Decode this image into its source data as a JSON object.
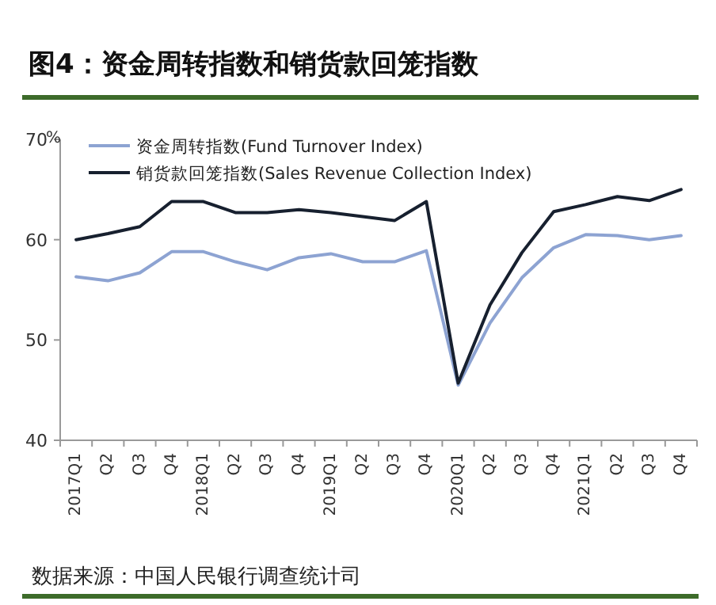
{
  "chart_data": {
    "type": "line",
    "title": "图4：资金周转指数和销货款回笼指数",
    "ylabel": "%",
    "categories": [
      "2017Q1",
      "Q2",
      "Q3",
      "Q4",
      "2018Q1",
      "Q2",
      "Q3",
      "Q4",
      "2019Q1",
      "Q2",
      "Q3",
      "Q4",
      "2020Q1",
      "Q2",
      "Q3",
      "Q4",
      "2021Q1",
      "Q2",
      "Q3",
      "Q4"
    ],
    "series": [
      {
        "name": "资金周转指数(Fund Turnover Index)",
        "color": "#8da3d2",
        "values": [
          56.3,
          55.9,
          56.7,
          58.8,
          58.8,
          57.8,
          57.0,
          58.2,
          58.6,
          57.8,
          57.8,
          58.9,
          45.5,
          51.7,
          56.2,
          59.2,
          60.5,
          60.4,
          60.0,
          60.4
        ]
      },
      {
        "name": "销货款回笼指数(Sales Revenue Collection Index)",
        "color": "#17202f",
        "values": [
          60.0,
          60.6,
          61.3,
          63.8,
          63.8,
          62.7,
          62.7,
          63.0,
          62.7,
          62.3,
          61.9,
          63.8,
          45.7,
          53.5,
          58.7,
          62.8,
          63.5,
          64.3,
          63.9,
          65.0
        ]
      }
    ],
    "ylim": [
      40,
      70
    ],
    "yticks": [
      40,
      50,
      60,
      70
    ],
    "legend": "top left",
    "marker": "none",
    "line_style": "solid",
    "annotations": [
      "数据来源：中国人民银行调查统计司"
    ]
  }
}
